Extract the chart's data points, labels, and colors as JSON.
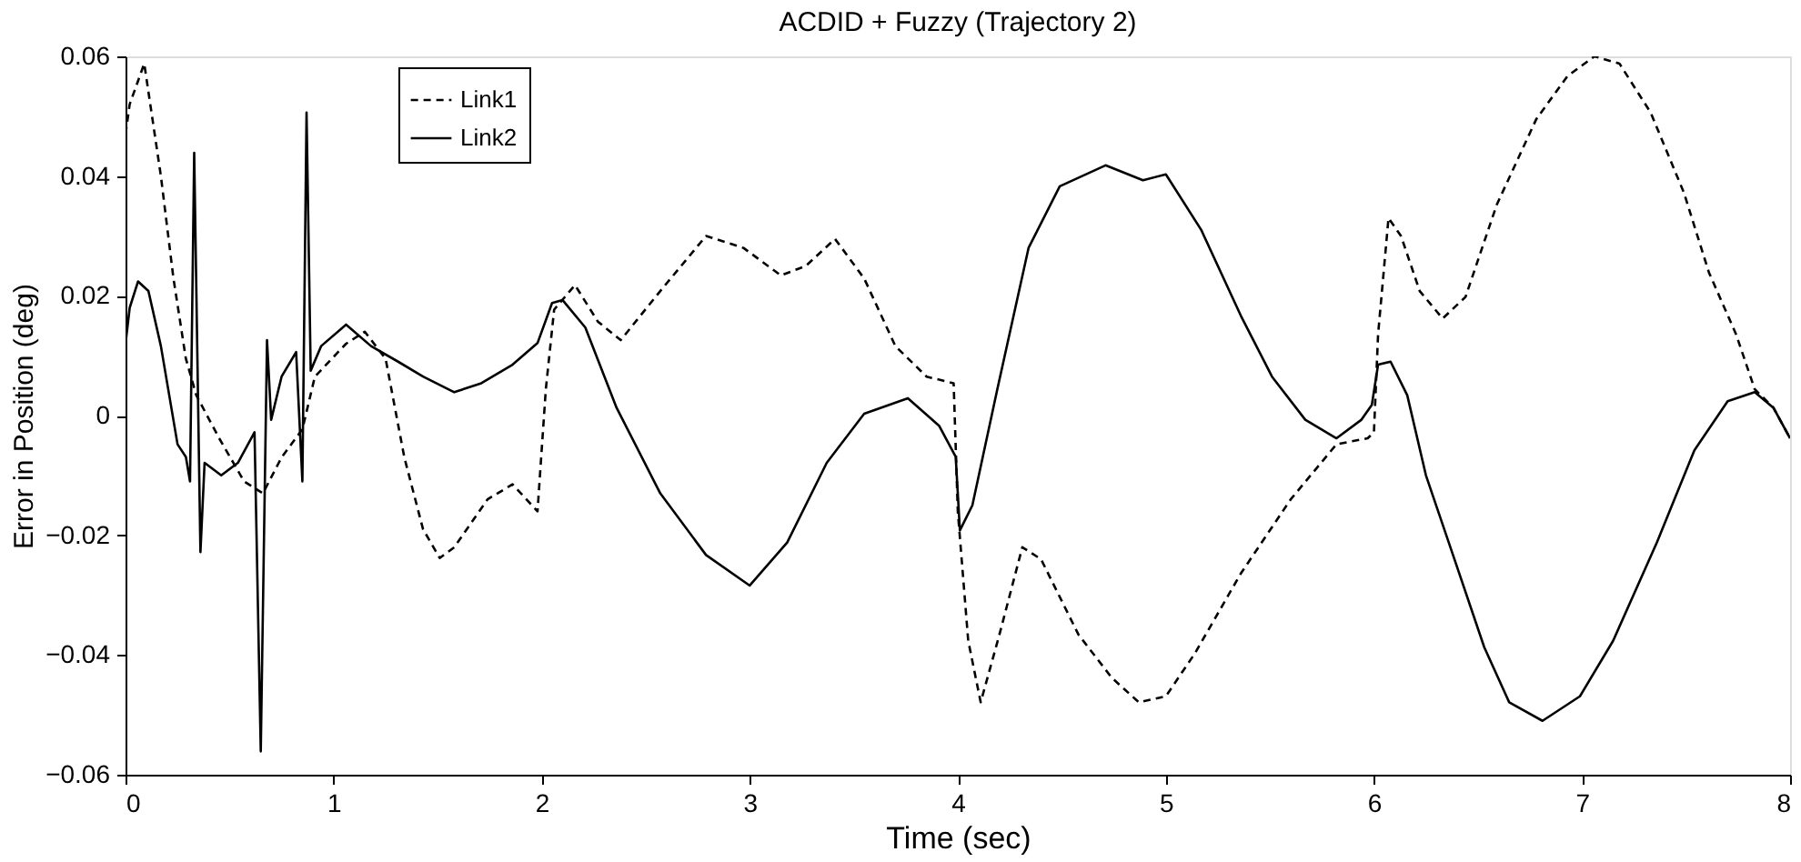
{
  "chart_data": {
    "type": "line",
    "title": "ACDID + Fuzzy (Trajectory 2)",
    "xlabel": "Time (sec)",
    "ylabel": "Error in Position (deg)",
    "xlim": [
      0,
      8
    ],
    "ylim": [
      -0.06,
      0.06
    ],
    "xticks": [
      0,
      1,
      2,
      3,
      4,
      5,
      6,
      7,
      8
    ],
    "yticks": [
      -0.06,
      -0.04,
      -0.02,
      0,
      0.02,
      0.04,
      0.06
    ],
    "grid": false,
    "legend": "top left",
    "marker": "none",
    "series": [
      {
        "name": "Link1",
        "color": "#000000",
        "line_style": "dashed",
        "x": [
          0,
          0.02,
          0.09,
          0.17,
          0.23,
          0.29,
          0.34,
          0.45,
          0.57,
          0.66,
          0.75,
          0.85,
          0.91,
          1.06,
          1.15,
          1.25,
          1.34,
          1.43,
          1.51,
          1.58,
          1.74,
          1.86,
          1.98,
          2.02,
          2.06,
          2.16,
          2.27,
          2.38,
          2.57,
          2.79,
          2.97,
          3.15,
          3.27,
          3.41,
          3.55,
          3.7,
          3.85,
          3.98,
          4.0,
          4.05,
          4.11,
          4.2,
          4.31,
          4.4,
          4.58,
          4.74,
          4.87,
          5.0,
          5.14,
          5.36,
          5.6,
          5.82,
          5.97,
          6.0,
          6.02,
          6.07,
          6.13,
          6.22,
          6.33,
          6.44,
          6.59,
          6.78,
          6.93,
          7.06,
          7.18,
          7.33,
          7.49,
          7.61,
          7.74,
          7.83,
          7.92,
          8.0
        ],
        "values": [
          0.047,
          0.052,
          0.0588,
          0.04,
          0.023,
          0.0095,
          0.0034,
          -0.0038,
          -0.011,
          -0.013,
          -0.007,
          -0.0023,
          0.0065,
          0.012,
          0.014,
          0.0095,
          -0.007,
          -0.019,
          -0.0238,
          -0.022,
          -0.014,
          -0.0115,
          -0.016,
          0.0044,
          0.0177,
          0.0218,
          0.0157,
          0.0126,
          0.0208,
          0.03,
          0.028,
          0.0234,
          0.025,
          0.0295,
          0.0229,
          0.0116,
          0.0065,
          0.0054,
          -0.016,
          -0.0376,
          -0.0479,
          -0.0366,
          -0.022,
          -0.024,
          -0.0366,
          -0.0438,
          -0.0479,
          -0.0469,
          -0.0397,
          -0.0264,
          -0.014,
          -0.0048,
          -0.0038,
          -0.0028,
          0.0136,
          0.033,
          0.03,
          0.0208,
          0.0162,
          0.0198,
          0.0352,
          0.0495,
          0.0567,
          0.06,
          0.0588,
          0.0506,
          0.0372,
          0.0239,
          0.0136,
          0.0044,
          0.0013,
          -0.0038
        ]
      },
      {
        "name": "Link2",
        "color": "#000000",
        "line_style": "solid",
        "x": [
          0,
          0.02,
          0.06,
          0.11,
          0.17,
          0.25,
          0.29,
          0.31,
          0.33,
          0.36,
          0.38,
          0.46,
          0.54,
          0.62,
          0.65,
          0.68,
          0.7,
          0.75,
          0.82,
          0.85,
          0.87,
          0.89,
          0.94,
          1.06,
          1.18,
          1.31,
          1.43,
          1.58,
          1.71,
          1.86,
          1.98,
          2.05,
          2.1,
          2.21,
          2.36,
          2.57,
          2.79,
          3.0,
          3.18,
          3.37,
          3.55,
          3.76,
          3.91,
          3.99,
          4.01,
          4.07,
          4.19,
          4.34,
          4.49,
          4.71,
          4.89,
          5.0,
          5.17,
          5.36,
          5.51,
          5.67,
          5.82,
          5.94,
          5.99,
          6.02,
          6.08,
          6.16,
          6.25,
          6.38,
          6.53,
          6.65,
          6.81,
          6.99,
          7.15,
          7.36,
          7.54,
          7.7,
          7.83,
          7.92,
          8.0
        ],
        "values": [
          0.012,
          0.018,
          0.0224,
          0.0208,
          0.0116,
          -0.0048,
          -0.0069,
          -0.011,
          0.0439,
          -0.0228,
          -0.0079,
          -0.01,
          -0.0079,
          -0.0028,
          -0.0561,
          0.0126,
          -0.0007,
          0.0065,
          0.0106,
          -0.011,
          0.0506,
          0.0075,
          0.0116,
          0.0152,
          0.0116,
          0.009,
          0.0065,
          0.0039,
          0.0054,
          0.0085,
          0.0121,
          0.0188,
          0.0193,
          0.0147,
          0.0013,
          -0.013,
          -0.0233,
          -0.0284,
          -0.0212,
          -0.0079,
          0.0003,
          0.0029,
          -0.0017,
          -0.0069,
          -0.0192,
          -0.015,
          0.0044,
          0.028,
          0.0383,
          0.0418,
          0.0393,
          0.0403,
          0.031,
          0.0167,
          0.0065,
          -0.0007,
          -0.0038,
          -0.0007,
          0.0018,
          0.0085,
          0.009,
          0.0034,
          -0.01,
          -0.0233,
          -0.0387,
          -0.0479,
          -0.051,
          -0.0469,
          -0.0376,
          -0.0212,
          -0.0058,
          0.0024,
          0.0039,
          0.0013,
          -0.0038
        ]
      }
    ]
  }
}
